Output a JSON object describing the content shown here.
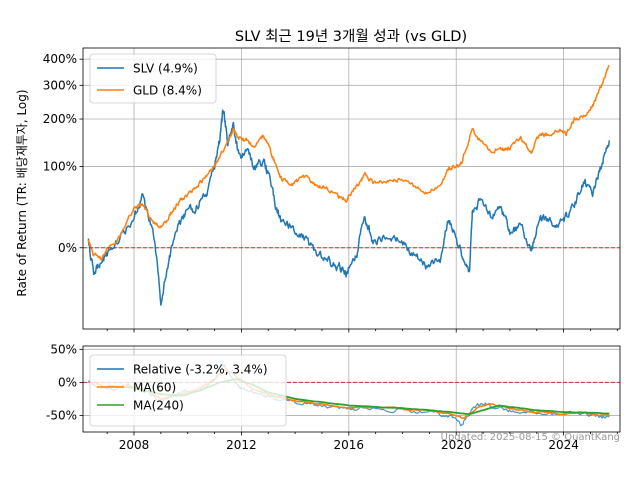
{
  "chart_data": [
    {
      "type": "line",
      "title": "SLV 최근 19년 3개월 성과 (vs GLD)",
      "ylabel": "Rate of Return (TR: 배당재투자, Log)",
      "yscale": "log(1+r)",
      "ylim": [
        -50,
        450
      ],
      "y_ticks": [
        {
          "label": "400%",
          "value": 400
        },
        {
          "label": "300%",
          "value": 300
        },
        {
          "label": "200%",
          "value": 200
        },
        {
          "label": "100%",
          "value": 100
        },
        {
          "label": "0%",
          "value": 0
        }
      ],
      "x_ticks": [
        "2008",
        "2012",
        "2016",
        "2020",
        "2024"
      ],
      "xlim": [
        2006.1,
        2026.1
      ],
      "grid": true,
      "legend": "top-left",
      "reference_line": {
        "value": 0,
        "color": "#d62728",
        "style": "dashed"
      },
      "series": [
        {
          "name": "SLV (4.9%)",
          "color": "#1f77b4",
          "x": [
            2006.3,
            2006.5,
            2006.8,
            2007.0,
            2007.5,
            2008.0,
            2008.3,
            2008.7,
            2009.0,
            2009.3,
            2009.6,
            2009.9,
            2010.3,
            2010.7,
            2011.0,
            2011.2,
            2011.33,
            2011.5,
            2011.7,
            2011.9,
            2012.2,
            2012.5,
            2012.8,
            2013.0,
            2013.3,
            2013.5,
            2013.9,
            2014.3,
            2014.8,
            2015.2,
            2015.6,
            2015.9,
            2016.3,
            2016.6,
            2016.9,
            2017.4,
            2017.9,
            2018.4,
            2018.9,
            2019.4,
            2019.7,
            2019.9,
            2020.2,
            2020.5,
            2020.6,
            2020.9,
            2021.3,
            2021.7,
            2022.0,
            2022.4,
            2022.8,
            2023.1,
            2023.4,
            2023.8,
            2024.1,
            2024.4,
            2024.8,
            2025.1,
            2025.4,
            2025.7
          ],
          "y": [
            5,
            -20,
            -10,
            -5,
            10,
            30,
            55,
            15,
            -40,
            -10,
            20,
            35,
            40,
            60,
            100,
            150,
            225,
            140,
            180,
            120,
            130,
            95,
            110,
            90,
            40,
            25,
            20,
            10,
            -5,
            -10,
            -15,
            -20,
            -5,
            30,
            5,
            10,
            5,
            -5,
            -15,
            -10,
            25,
            15,
            -5,
            -20,
            35,
            50,
            30,
            40,
            15,
            20,
            -5,
            30,
            25,
            20,
            30,
            45,
            75,
            60,
            100,
            150
          ]
        },
        {
          "name": "GLD (8.4%)",
          "color": "#ff7f0e",
          "x": [
            2006.3,
            2006.5,
            2006.8,
            2007.0,
            2007.5,
            2008.0,
            2008.3,
            2008.7,
            2009.0,
            2009.3,
            2009.6,
            2009.9,
            2010.3,
            2010.7,
            2011.0,
            2011.33,
            2011.7,
            2011.9,
            2012.2,
            2012.5,
            2012.8,
            2013.0,
            2013.3,
            2013.5,
            2013.9,
            2014.3,
            2014.8,
            2015.2,
            2015.6,
            2015.9,
            2016.3,
            2016.6,
            2016.9,
            2017.4,
            2017.9,
            2018.4,
            2018.9,
            2019.4,
            2019.7,
            2019.9,
            2020.2,
            2020.6,
            2020.9,
            2021.3,
            2021.7,
            2022.0,
            2022.4,
            2022.8,
            2023.1,
            2023.4,
            2023.8,
            2024.1,
            2024.4,
            2024.8,
            2025.1,
            2025.4,
            2025.7
          ],
          "y": [
            5,
            -5,
            -10,
            0,
            10,
            40,
            45,
            25,
            20,
            30,
            45,
            55,
            65,
            85,
            100,
            130,
            175,
            155,
            150,
            135,
            160,
            140,
            100,
            80,
            70,
            85,
            70,
            65,
            55,
            50,
            70,
            85,
            75,
            75,
            80,
            70,
            60,
            70,
            95,
            100,
            105,
            175,
            145,
            130,
            130,
            135,
            155,
            125,
            165,
            160,
            175,
            165,
            200,
            210,
            240,
            300,
            370
          ]
        }
      ]
    },
    {
      "type": "line",
      "ylim": [
        -75,
        55
      ],
      "y_ticks": [
        {
          "label": "50%",
          "value": 50
        },
        {
          "label": "0%",
          "value": 0
        },
        {
          "label": "-50%",
          "value": -50
        }
      ],
      "x_ticks": [
        "2008",
        "2012",
        "2016",
        "2020",
        "2024"
      ],
      "xlim": [
        2006.1,
        2026.1
      ],
      "grid": true,
      "legend": "top-left",
      "reference_line": {
        "value": 0,
        "color": "#d62728",
        "style": "dashed"
      },
      "series": [
        {
          "name": "Relative (-3.2%, 3.4%)",
          "color": "#1f77b4",
          "x": [
            2006.3,
            2007.0,
            2007.8,
            2008.5,
            2009.0,
            2009.5,
            2010.0,
            2010.5,
            2011.0,
            2011.3,
            2011.6,
            2012.0,
            2012.6,
            2013.2,
            2014.0,
            2015.0,
            2016.0,
            2017.0,
            2018.0,
            2019.0,
            2019.8,
            2020.2,
            2020.6,
            2021.0,
            2021.6,
            2022.2,
            2023.0,
            2024.0,
            2024.8,
            2025.3,
            2025.7
          ],
          "y": [
            0,
            -10,
            -5,
            -15,
            -30,
            -20,
            -15,
            -10,
            5,
            30,
            10,
            -10,
            -15,
            -25,
            -30,
            -35,
            -40,
            -38,
            -42,
            -45,
            -50,
            -65,
            -40,
            -30,
            -40,
            -42,
            -45,
            -48,
            -45,
            -52,
            -50
          ]
        },
        {
          "name": "MA(60)",
          "color": "#ff7f0e",
          "x": [
            2006.5,
            2007.0,
            2007.8,
            2008.5,
            2009.0,
            2009.5,
            2010.0,
            2010.5,
            2011.0,
            2011.4,
            2011.8,
            2012.4,
            2013.2,
            2014.0,
            2015.0,
            2016.0,
            2017.0,
            2018.0,
            2019.0,
            2019.8,
            2020.3,
            2020.8,
            2021.2,
            2021.8,
            2022.4,
            2023.0,
            2024.0,
            2024.8,
            2025.3,
            2025.7
          ],
          "y": [
            0,
            -8,
            -5,
            -12,
            -25,
            -20,
            -15,
            -8,
            5,
            20,
            10,
            -10,
            -20,
            -28,
            -33,
            -38,
            -37,
            -40,
            -43,
            -48,
            -55,
            -38,
            -32,
            -38,
            -42,
            -45,
            -47,
            -45,
            -50,
            -49
          ]
        },
        {
          "name": "MA(240)",
          "color": "#2ca02c",
          "x": [
            2007.0,
            2008.0,
            2009.0,
            2009.8,
            2010.5,
            2011.2,
            2011.8,
            2012.4,
            2013.0,
            2014.0,
            2015.0,
            2016.0,
            2017.0,
            2018.0,
            2019.0,
            2019.8,
            2020.5,
            2021.0,
            2021.6,
            2022.2,
            2023.0,
            2024.0,
            2024.8,
            2025.7
          ],
          "y": [
            -5,
            -8,
            -18,
            -20,
            -12,
            0,
            5,
            -3,
            -15,
            -25,
            -30,
            -35,
            -37,
            -39,
            -42,
            -45,
            -48,
            -42,
            -35,
            -38,
            -42,
            -45,
            -46,
            -47
          ]
        }
      ]
    }
  ],
  "footer": {
    "credit": "Updated: 2025-08-15 © QuantKang"
  }
}
